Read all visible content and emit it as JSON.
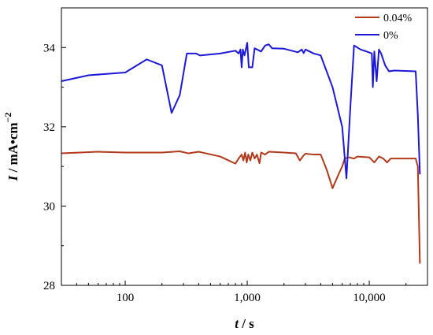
{
  "chart_data": {
    "type": "line",
    "xlabel": {
      "var": "t",
      "unit": "s"
    },
    "ylabel": {
      "var": "I",
      "unit": "mA•cm",
      "exp": "−2"
    },
    "x_scale": "log",
    "xlim": [
      30,
      30000
    ],
    "ylim": [
      28,
      35
    ],
    "x_ticks": [
      100,
      1000,
      10000
    ],
    "x_tick_labels": [
      "100",
      "1,000",
      "10,000"
    ],
    "y_ticks": [
      28,
      30,
      32,
      34
    ],
    "y_tick_labels": [
      "28",
      "30",
      "32",
      "34"
    ],
    "grid": false,
    "legend_position": "top-right",
    "series": [
      {
        "name": "0.04%",
        "color": "#b03a1a",
        "points": [
          [
            30,
            31.33
          ],
          [
            60,
            31.37
          ],
          [
            100,
            31.35
          ],
          [
            200,
            31.35
          ],
          [
            280,
            31.38
          ],
          [
            330,
            31.33
          ],
          [
            400,
            31.37
          ],
          [
            600,
            31.25
          ],
          [
            800,
            31.07
          ],
          [
            850,
            31.2
          ],
          [
            900,
            31.3
          ],
          [
            930,
            31.15
          ],
          [
            960,
            31.35
          ],
          [
            990,
            31.1
          ],
          [
            1020,
            31.3
          ],
          [
            1060,
            31.15
          ],
          [
            1100,
            31.35
          ],
          [
            1150,
            31.2
          ],
          [
            1200,
            31.3
          ],
          [
            1260,
            31.08
          ],
          [
            1300,
            31.35
          ],
          [
            1400,
            31.3
          ],
          [
            1500,
            31.37
          ],
          [
            2000,
            31.35
          ],
          [
            2500,
            31.33
          ],
          [
            2700,
            31.15
          ],
          [
            2900,
            31.28
          ],
          [
            3000,
            31.32
          ],
          [
            3500,
            31.3
          ],
          [
            4000,
            31.3
          ],
          [
            4500,
            30.9
          ],
          [
            5000,
            30.45
          ],
          [
            5600,
            30.8
          ],
          [
            6000,
            31.0
          ],
          [
            6300,
            31.2
          ],
          [
            6800,
            31.23
          ],
          [
            7500,
            31.2
          ],
          [
            8000,
            31.25
          ],
          [
            10000,
            31.23
          ],
          [
            11000,
            31.1
          ],
          [
            12000,
            31.25
          ],
          [
            13000,
            31.2
          ],
          [
            14000,
            31.1
          ],
          [
            15000,
            31.2
          ],
          [
            24000,
            31.2
          ],
          [
            25000,
            31.0
          ],
          [
            26000,
            28.55
          ]
        ]
      },
      {
        "name": "0%",
        "color": "#1c18d6",
        "points": [
          [
            30,
            33.15
          ],
          [
            50,
            33.3
          ],
          [
            100,
            33.37
          ],
          [
            150,
            33.7
          ],
          [
            200,
            33.55
          ],
          [
            240,
            32.35
          ],
          [
            280,
            32.8
          ],
          [
            320,
            33.85
          ],
          [
            380,
            33.85
          ],
          [
            410,
            33.8
          ],
          [
            600,
            33.85
          ],
          [
            800,
            33.92
          ],
          [
            850,
            33.85
          ],
          [
            880,
            33.95
          ],
          [
            900,
            33.5
          ],
          [
            920,
            33.95
          ],
          [
            950,
            33.8
          ],
          [
            1000,
            34.12
          ],
          [
            1030,
            33.5
          ],
          [
            1100,
            33.5
          ],
          [
            1150,
            33.98
          ],
          [
            1300,
            33.9
          ],
          [
            1400,
            34.05
          ],
          [
            1500,
            34.08
          ],
          [
            1600,
            33.98
          ],
          [
            2000,
            33.97
          ],
          [
            2600,
            33.88
          ],
          [
            2800,
            33.95
          ],
          [
            2900,
            33.86
          ],
          [
            3000,
            33.95
          ],
          [
            3500,
            33.85
          ],
          [
            4000,
            33.8
          ],
          [
            5000,
            33.0
          ],
          [
            6000,
            32.0
          ],
          [
            6500,
            30.7
          ],
          [
            7000,
            32.5
          ],
          [
            7500,
            34.05
          ],
          [
            8500,
            33.95
          ],
          [
            9500,
            33.9
          ],
          [
            10500,
            33.85
          ],
          [
            10700,
            33.0
          ],
          [
            11000,
            33.9
          ],
          [
            11500,
            33.15
          ],
          [
            12000,
            33.95
          ],
          [
            12500,
            33.85
          ],
          [
            13500,
            33.55
          ],
          [
            14500,
            33.4
          ],
          [
            16000,
            33.42
          ],
          [
            24000,
            33.4
          ],
          [
            25000,
            32.3
          ],
          [
            26000,
            30.8
          ]
        ]
      }
    ]
  }
}
